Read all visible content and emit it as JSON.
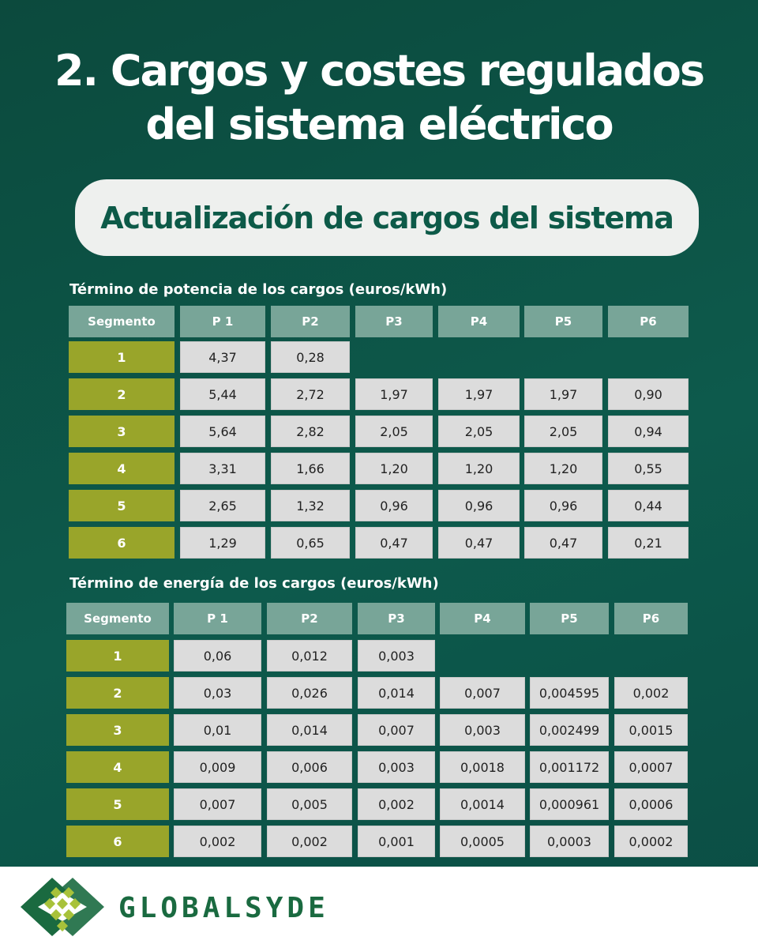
{
  "header": {
    "title_lines": [
      "2. Cargos y costes regulados",
      "del sistema eléctrico"
    ],
    "subtitle": "Actualización de cargos del sistema"
  },
  "tables": [
    {
      "caption": "Término de potencia de los cargos (euros/kWh)",
      "columns": [
        "Segmento",
        "P 1",
        "P2",
        "P3",
        "P4",
        "P5",
        "P6"
      ],
      "rows": [
        [
          "1",
          "4,37",
          "0,28"
        ],
        [
          "2",
          "5,44",
          "2,72",
          "1,97",
          "1,97",
          "1,97",
          "0,90"
        ],
        [
          "3",
          "5,64",
          "2,82",
          "2,05",
          "2,05",
          "2,05",
          "0,94"
        ],
        [
          "4",
          "3,31",
          "1,66",
          "1,20",
          "1,20",
          "1,20",
          "0,55"
        ],
        [
          "5",
          "2,65",
          "1,32",
          "0,96",
          "0,96",
          "0,96",
          "0,44"
        ],
        [
          "6",
          "1,29",
          "0,65",
          "0,47",
          "0,47",
          "0,47",
          "0,21"
        ]
      ]
    },
    {
      "caption": "Término de energía de los cargos (euros/kWh)",
      "columns": [
        "Segmento",
        "P 1",
        "P2",
        "P3",
        "P4",
        "P5",
        "P6"
      ],
      "rows": [
        [
          "1",
          "0,06",
          "0,012",
          "0,003"
        ],
        [
          "2",
          "0,03",
          "0,026",
          "0,014",
          "0,007",
          "0,004595",
          "0,002"
        ],
        [
          "3",
          "0,01",
          "0,014",
          "0,007",
          "0,003",
          "0,002499",
          "0,0015"
        ],
        [
          "4",
          "0,009",
          "0,006",
          "0,003",
          "0,0018",
          "0,001172",
          "0,0007"
        ],
        [
          "5",
          "0,007",
          "0,005",
          "0,002",
          "0,0014",
          "0,000961",
          "0,0006"
        ],
        [
          "6",
          "0,002",
          "0,002",
          "0,001",
          "0,0005",
          "0,0003",
          "0,0002"
        ]
      ]
    }
  ],
  "footer": {
    "brand": "GLOBALSYDE"
  }
}
